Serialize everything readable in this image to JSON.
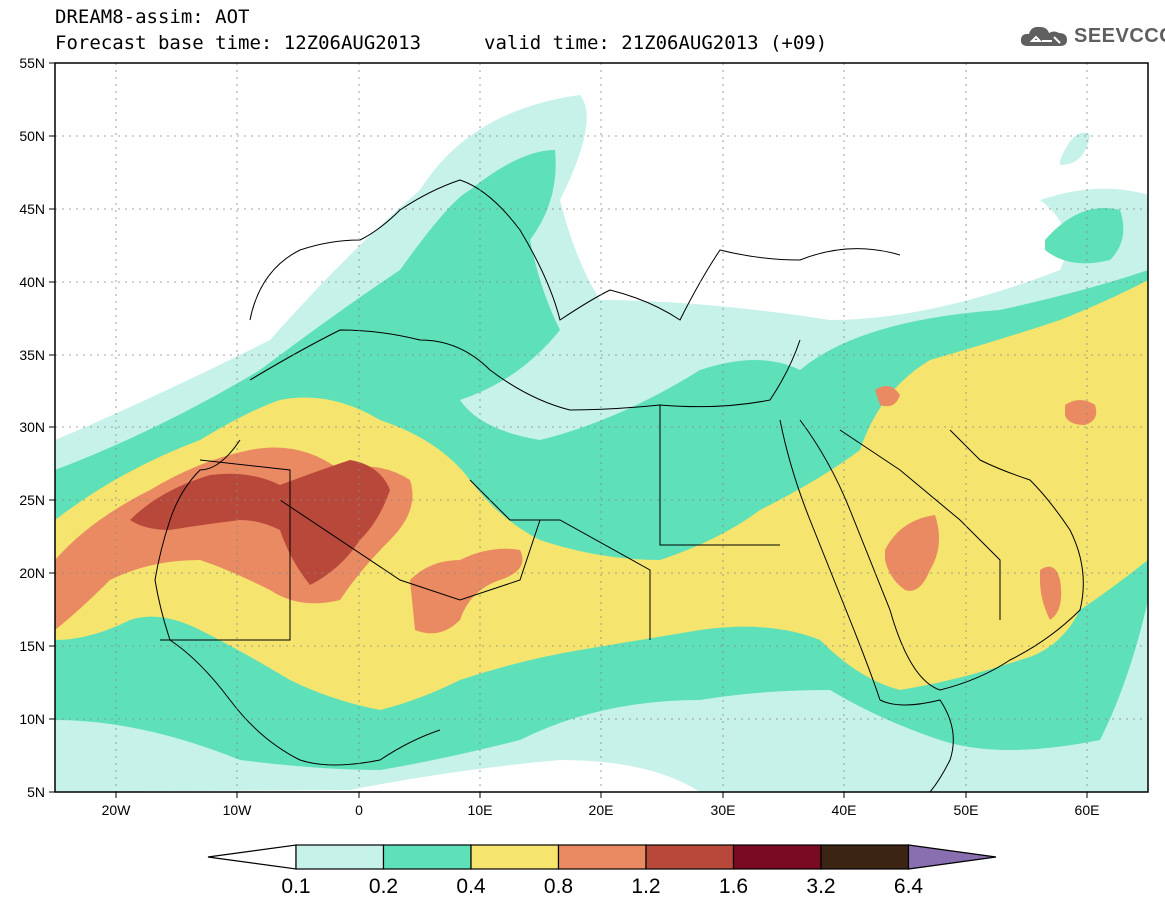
{
  "header": {
    "title": "DREAM8-assim: AOT",
    "base_time": "Forecast base time: 12Z06AUG2013",
    "valid_time": "valid time: 21Z06AUG2013 (+09)"
  },
  "logo": {
    "text": "SEEVCCC",
    "icon": "cloud-icon"
  },
  "map": {
    "lon_range": [
      -25,
      65
    ],
    "lat_range": [
      5,
      55
    ],
    "lon_ticks": [
      "20W",
      "10W",
      "0",
      "10E",
      "20E",
      "30E",
      "40E",
      "50E",
      "60E"
    ],
    "lat_ticks": [
      "5N",
      "10N",
      "15N",
      "20N",
      "25N",
      "30N",
      "35N",
      "40N",
      "45N",
      "50N",
      "55N"
    ],
    "grid": true
  },
  "colorbar": {
    "labels": [
      "0.1",
      "0.2",
      "0.4",
      "0.8",
      "1.2",
      "1.6",
      "3.2",
      "6.4"
    ],
    "colors": [
      "#c6f2ea",
      "#5ee0b9",
      "#f5e46e",
      "#ea8a62",
      "#b8493a",
      "#7a0a24",
      "#3b2414",
      "#8a6fb0"
    ],
    "under_color": "#ffffff"
  }
}
